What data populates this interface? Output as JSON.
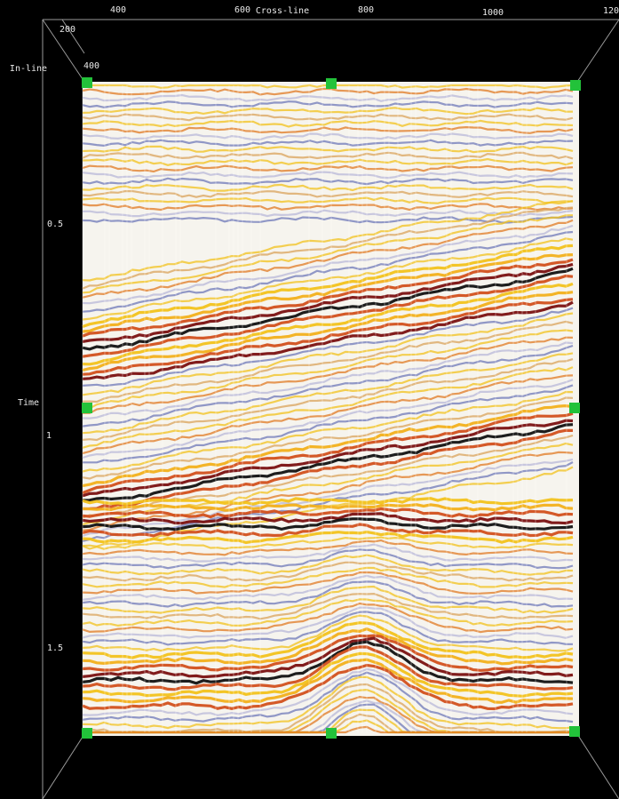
{
  "axes": {
    "crossline_label": "Cross-line",
    "crossline_ticks": [
      "400",
      "600",
      "800",
      "1000",
      "120"
    ],
    "inline_label": "In-line",
    "inline_ticks": [
      "200",
      "400"
    ],
    "time_label": "Time",
    "time_ticks": [
      "0.5",
      "1",
      "1.5"
    ]
  }
}
